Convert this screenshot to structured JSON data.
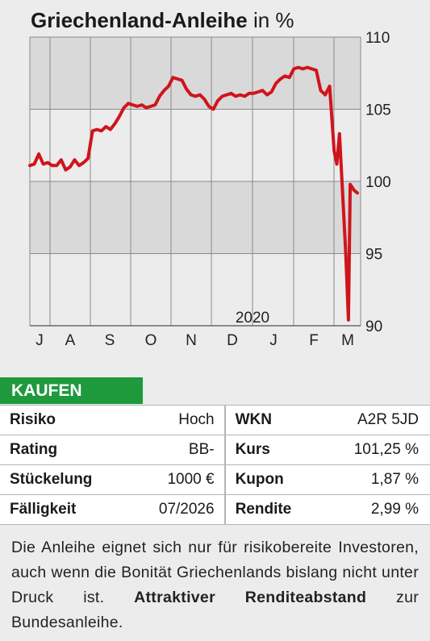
{
  "header": {
    "title": "Griechenland-Anleihe",
    "unit": "in %"
  },
  "chart_data": {
    "type": "line",
    "title": "Griechenland-Anleihe in %",
    "ylim": [
      90,
      110
    ],
    "y_ticks": [
      "110",
      "105",
      "100",
      "95",
      "90"
    ],
    "x_ticks": [
      "J",
      "A",
      "S",
      "O",
      "N",
      "D",
      "J",
      "F",
      "M"
    ],
    "year_label": "2020",
    "grid": true,
    "line_color": "#d0141c",
    "series": [
      {
        "values": [
          [
            0.0,
            101.1
          ],
          [
            0.5,
            101.2
          ],
          [
            1.0,
            101.9
          ],
          [
            1.5,
            101.2
          ],
          [
            2.0,
            101.3
          ],
          [
            2.5,
            101.1
          ],
          [
            3.0,
            101.1
          ],
          [
            3.5,
            101.5
          ],
          [
            4.0,
            100.8
          ],
          [
            4.5,
            101.0
          ],
          [
            5.0,
            101.5
          ],
          [
            5.5,
            101.1
          ],
          [
            6.0,
            101.3
          ],
          [
            6.5,
            101.6
          ],
          [
            7.0,
            103.5
          ],
          [
            7.5,
            103.6
          ],
          [
            8.0,
            103.5
          ],
          [
            8.5,
            103.8
          ],
          [
            9.0,
            103.6
          ],
          [
            9.5,
            104.0
          ],
          [
            10.0,
            104.5
          ],
          [
            10.5,
            105.1
          ],
          [
            11.0,
            105.4
          ],
          [
            11.5,
            105.3
          ],
          [
            12.0,
            105.2
          ],
          [
            12.5,
            105.3
          ],
          [
            13.0,
            105.1
          ],
          [
            13.5,
            105.2
          ],
          [
            14.0,
            105.3
          ],
          [
            14.5,
            105.9
          ],
          [
            15.0,
            106.3
          ],
          [
            15.5,
            106.6
          ],
          [
            16.0,
            107.2
          ],
          [
            16.5,
            107.1
          ],
          [
            17.0,
            107.0
          ],
          [
            17.5,
            106.4
          ],
          [
            18.0,
            106.0
          ],
          [
            18.5,
            105.9
          ],
          [
            19.0,
            106.0
          ],
          [
            19.5,
            105.7
          ],
          [
            20.0,
            105.2
          ],
          [
            20.5,
            105.0
          ],
          [
            21.0,
            105.6
          ],
          [
            21.5,
            105.9
          ],
          [
            22.0,
            106.0
          ],
          [
            22.5,
            106.1
          ],
          [
            23.0,
            105.9
          ],
          [
            23.5,
            106.0
          ],
          [
            24.0,
            105.9
          ],
          [
            24.5,
            106.1
          ],
          [
            25.0,
            106.1
          ],
          [
            25.5,
            106.2
          ],
          [
            26.0,
            106.3
          ],
          [
            26.5,
            106.0
          ],
          [
            27.0,
            106.2
          ],
          [
            27.5,
            106.8
          ],
          [
            28.0,
            107.1
          ],
          [
            28.5,
            107.3
          ],
          [
            29.0,
            107.2
          ],
          [
            29.5,
            107.8
          ],
          [
            30.0,
            107.9
          ],
          [
            30.5,
            107.8
          ],
          [
            31.0,
            107.9
          ],
          [
            31.5,
            107.8
          ],
          [
            32.0,
            107.7
          ],
          [
            32.5,
            106.3
          ],
          [
            33.0,
            106.0
          ],
          [
            33.5,
            106.6
          ],
          [
            34.0,
            102.1
          ],
          [
            34.3,
            101.2
          ],
          [
            34.6,
            103.3
          ],
          [
            34.9,
            99.8
          ],
          [
            35.3,
            95.0
          ],
          [
            35.6,
            90.4
          ],
          [
            35.8,
            99.8
          ],
          [
            36.2,
            99.4
          ],
          [
            36.6,
            99.2
          ]
        ]
      }
    ]
  },
  "badge": "KAUFEN",
  "facts": [
    {
      "k1": "Risiko",
      "v1": "Hoch",
      "k2": "WKN",
      "v2": "A2R 5JD"
    },
    {
      "k1": "Rating",
      "v1": "BB-",
      "k2": "Kurs",
      "v2": "101,25 %"
    },
    {
      "k1": "Stückelung",
      "v1": "1000 €",
      "k2": "Kupon",
      "v2": "1,87 %"
    },
    {
      "k1": "Fälligkeit",
      "v1": "07/2026",
      "k2": "Rendite",
      "v2": "2,99 %"
    }
  ],
  "description": {
    "text": "Die Anleihe eignet sich nur für risikobereite Investoren, auch wenn die Bonität Griechenlands bislang nicht unter Druck ist.",
    "bold": "Attraktiver Renditeabstand",
    "tail": "zur Bundesanleihe."
  }
}
